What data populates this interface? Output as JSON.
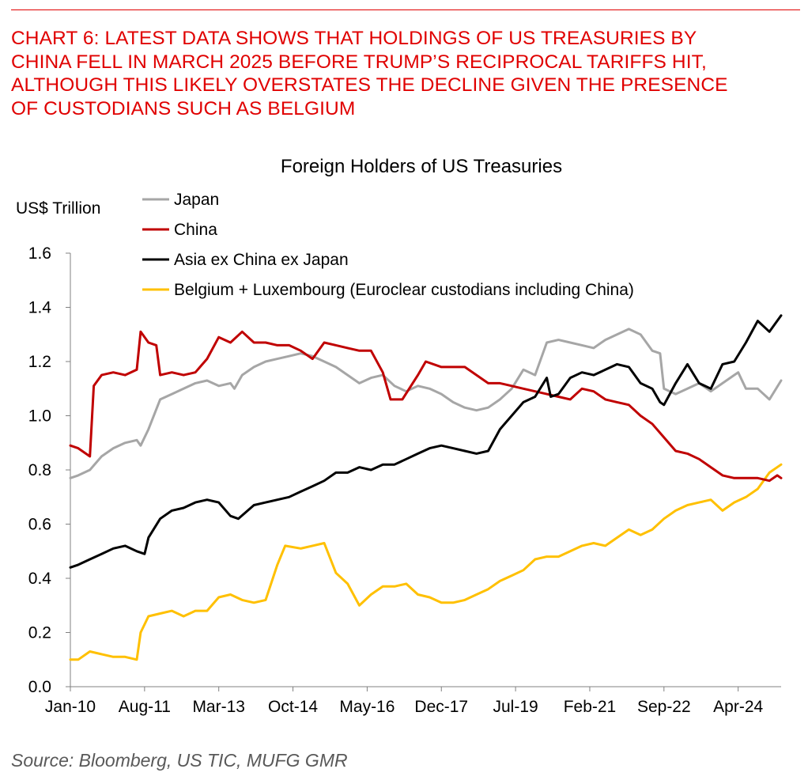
{
  "header": {
    "headline_lines": [
      "CHART 6: LATEST DATA SHOWS THAT HOLDINGS OF US TREASURIES BY",
      "CHINA FELL IN MARCH 2025 BEFORE TRUMP’S RECIPROCAL TARIFFS HIT,",
      "ALTHOUGH THIS LIKELY OVERSTATES THE DECLINE GIVEN THE PRESENCE",
      "OF CUSTODIANS SUCH AS BELGIUM"
    ],
    "accent_color": "#e00000"
  },
  "footer": {
    "source": "Source: Bloomberg, US TIC, MUFG GMR"
  },
  "chart_data": {
    "type": "line",
    "title": "Foreign Holders of US Treasuries",
    "ylabel": "US$ Trillion",
    "xlabel": "",
    "ylim": [
      0,
      1.6
    ],
    "yticks": [
      0.0,
      0.2,
      0.4,
      0.6,
      0.8,
      1.0,
      1.2,
      1.4,
      1.6
    ],
    "ytick_labels": [
      "0.0",
      "0.2",
      "0.4",
      "0.6",
      "0.8",
      "1.0",
      "1.2",
      "1.4",
      "1.6"
    ],
    "xlim": [
      "2010-01",
      "2025-03"
    ],
    "xticks": [
      "2010-01",
      "2011-08",
      "2013-03",
      "2014-10",
      "2016-05",
      "2017-12",
      "2019-07",
      "2021-02",
      "2022-09",
      "2024-04"
    ],
    "xtick_labels": [
      "Jan-10",
      "Aug-11",
      "Mar-13",
      "Oct-14",
      "May-16",
      "Dec-17",
      "Jul-19",
      "Feb-21",
      "Sep-22",
      "Apr-24"
    ],
    "grid": false,
    "legend_position": "top-left",
    "series": [
      {
        "name": "Japan",
        "color": "#a6a6a6",
        "points": [
          [
            "2010-01",
            0.77
          ],
          [
            "2010-03",
            0.78
          ],
          [
            "2010-06",
            0.8
          ],
          [
            "2010-09",
            0.85
          ],
          [
            "2010-12",
            0.88
          ],
          [
            "2011-03",
            0.9
          ],
          [
            "2011-06",
            0.91
          ],
          [
            "2011-07",
            0.89
          ],
          [
            "2011-09",
            0.95
          ],
          [
            "2011-12",
            1.06
          ],
          [
            "2012-03",
            1.08
          ],
          [
            "2012-06",
            1.1
          ],
          [
            "2012-09",
            1.12
          ],
          [
            "2012-12",
            1.13
          ],
          [
            "2013-03",
            1.11
          ],
          [
            "2013-06",
            1.12
          ],
          [
            "2013-07",
            1.1
          ],
          [
            "2013-09",
            1.15
          ],
          [
            "2013-12",
            1.18
          ],
          [
            "2014-03",
            1.2
          ],
          [
            "2014-06",
            1.21
          ],
          [
            "2014-09",
            1.22
          ],
          [
            "2014-12",
            1.23
          ],
          [
            "2015-03",
            1.22
          ],
          [
            "2015-06",
            1.2
          ],
          [
            "2015-09",
            1.18
          ],
          [
            "2015-12",
            1.15
          ],
          [
            "2016-03",
            1.12
          ],
          [
            "2016-06",
            1.14
          ],
          [
            "2016-09",
            1.15
          ],
          [
            "2016-12",
            1.11
          ],
          [
            "2017-03",
            1.09
          ],
          [
            "2017-06",
            1.11
          ],
          [
            "2017-09",
            1.1
          ],
          [
            "2017-12",
            1.08
          ],
          [
            "2018-03",
            1.05
          ],
          [
            "2018-06",
            1.03
          ],
          [
            "2018-09",
            1.02
          ],
          [
            "2018-12",
            1.03
          ],
          [
            "2019-03",
            1.06
          ],
          [
            "2019-06",
            1.1
          ],
          [
            "2019-09",
            1.17
          ],
          [
            "2019-12",
            1.15
          ],
          [
            "2020-03",
            1.27
          ],
          [
            "2020-06",
            1.28
          ],
          [
            "2020-09",
            1.27
          ],
          [
            "2020-12",
            1.26
          ],
          [
            "2021-03",
            1.25
          ],
          [
            "2021-06",
            1.28
          ],
          [
            "2021-09",
            1.3
          ],
          [
            "2021-12",
            1.32
          ],
          [
            "2022-03",
            1.3
          ],
          [
            "2022-06",
            1.24
          ],
          [
            "2022-08",
            1.23
          ],
          [
            "2022-09",
            1.1
          ],
          [
            "2022-12",
            1.08
          ],
          [
            "2023-03",
            1.1
          ],
          [
            "2023-06",
            1.12
          ],
          [
            "2023-09",
            1.09
          ],
          [
            "2023-12",
            1.12
          ],
          [
            "2024-03",
            1.15
          ],
          [
            "2024-04",
            1.16
          ],
          [
            "2024-06",
            1.1
          ],
          [
            "2024-09",
            1.1
          ],
          [
            "2024-12",
            1.06
          ],
          [
            "2025-03",
            1.13
          ]
        ]
      },
      {
        "name": "China",
        "color": "#c00000",
        "points": [
          [
            "2010-01",
            0.89
          ],
          [
            "2010-03",
            0.88
          ],
          [
            "2010-06",
            0.85
          ],
          [
            "2010-07",
            1.11
          ],
          [
            "2010-09",
            1.15
          ],
          [
            "2010-12",
            1.16
          ],
          [
            "2011-03",
            1.15
          ],
          [
            "2011-06",
            1.17
          ],
          [
            "2011-07",
            1.31
          ],
          [
            "2011-09",
            1.27
          ],
          [
            "2011-11",
            1.26
          ],
          [
            "2011-12",
            1.15
          ],
          [
            "2012-03",
            1.16
          ],
          [
            "2012-06",
            1.15
          ],
          [
            "2012-09",
            1.16
          ],
          [
            "2012-12",
            1.21
          ],
          [
            "2013-03",
            1.29
          ],
          [
            "2013-06",
            1.27
          ],
          [
            "2013-09",
            1.31
          ],
          [
            "2013-12",
            1.27
          ],
          [
            "2014-03",
            1.27
          ],
          [
            "2014-06",
            1.26
          ],
          [
            "2014-09",
            1.26
          ],
          [
            "2014-12",
            1.24
          ],
          [
            "2015-03",
            1.21
          ],
          [
            "2015-06",
            1.27
          ],
          [
            "2015-09",
            1.26
          ],
          [
            "2015-12",
            1.25
          ],
          [
            "2016-03",
            1.24
          ],
          [
            "2016-06",
            1.24
          ],
          [
            "2016-09",
            1.16
          ],
          [
            "2016-11",
            1.06
          ],
          [
            "2017-02",
            1.06
          ],
          [
            "2017-06",
            1.15
          ],
          [
            "2017-08",
            1.2
          ],
          [
            "2017-12",
            1.18
          ],
          [
            "2018-03",
            1.18
          ],
          [
            "2018-06",
            1.18
          ],
          [
            "2018-09",
            1.15
          ],
          [
            "2018-12",
            1.12
          ],
          [
            "2019-03",
            1.12
          ],
          [
            "2019-06",
            1.11
          ],
          [
            "2019-09",
            1.1
          ],
          [
            "2019-12",
            1.09
          ],
          [
            "2020-03",
            1.08
          ],
          [
            "2020-06",
            1.07
          ],
          [
            "2020-09",
            1.06
          ],
          [
            "2020-12",
            1.1
          ],
          [
            "2021-03",
            1.09
          ],
          [
            "2021-06",
            1.06
          ],
          [
            "2021-09",
            1.05
          ],
          [
            "2021-12",
            1.04
          ],
          [
            "2022-03",
            1.0
          ],
          [
            "2022-06",
            0.97
          ],
          [
            "2022-09",
            0.92
          ],
          [
            "2022-12",
            0.87
          ],
          [
            "2023-03",
            0.86
          ],
          [
            "2023-06",
            0.84
          ],
          [
            "2023-09",
            0.81
          ],
          [
            "2023-12",
            0.78
          ],
          [
            "2024-03",
            0.77
          ],
          [
            "2024-06",
            0.77
          ],
          [
            "2024-09",
            0.77
          ],
          [
            "2024-12",
            0.76
          ],
          [
            "2025-02",
            0.78
          ],
          [
            "2025-03",
            0.77
          ]
        ]
      },
      {
        "name": "Asia ex China ex Japan",
        "color": "#000000",
        "points": [
          [
            "2010-01",
            0.44
          ],
          [
            "2010-03",
            0.45
          ],
          [
            "2010-06",
            0.47
          ],
          [
            "2010-09",
            0.49
          ],
          [
            "2010-12",
            0.51
          ],
          [
            "2011-03",
            0.52
          ],
          [
            "2011-06",
            0.5
          ],
          [
            "2011-08",
            0.49
          ],
          [
            "2011-09",
            0.55
          ],
          [
            "2011-12",
            0.62
          ],
          [
            "2012-03",
            0.65
          ],
          [
            "2012-06",
            0.66
          ],
          [
            "2012-09",
            0.68
          ],
          [
            "2012-12",
            0.69
          ],
          [
            "2013-03",
            0.68
          ],
          [
            "2013-06",
            0.63
          ],
          [
            "2013-08",
            0.62
          ],
          [
            "2013-12",
            0.67
          ],
          [
            "2014-03",
            0.68
          ],
          [
            "2014-06",
            0.69
          ],
          [
            "2014-09",
            0.7
          ],
          [
            "2014-12",
            0.72
          ],
          [
            "2015-03",
            0.74
          ],
          [
            "2015-06",
            0.76
          ],
          [
            "2015-09",
            0.79
          ],
          [
            "2015-12",
            0.79
          ],
          [
            "2016-03",
            0.81
          ],
          [
            "2016-06",
            0.8
          ],
          [
            "2016-09",
            0.82
          ],
          [
            "2016-12",
            0.82
          ],
          [
            "2017-03",
            0.84
          ],
          [
            "2017-06",
            0.86
          ],
          [
            "2017-09",
            0.88
          ],
          [
            "2017-12",
            0.89
          ],
          [
            "2018-03",
            0.88
          ],
          [
            "2018-06",
            0.87
          ],
          [
            "2018-09",
            0.86
          ],
          [
            "2018-12",
            0.87
          ],
          [
            "2019-03",
            0.95
          ],
          [
            "2019-06",
            1.0
          ],
          [
            "2019-09",
            1.05
          ],
          [
            "2019-12",
            1.07
          ],
          [
            "2020-03",
            1.14
          ],
          [
            "2020-04",
            1.07
          ],
          [
            "2020-06",
            1.08
          ],
          [
            "2020-09",
            1.14
          ],
          [
            "2020-12",
            1.16
          ],
          [
            "2021-03",
            1.15
          ],
          [
            "2021-06",
            1.17
          ],
          [
            "2021-09",
            1.19
          ],
          [
            "2021-12",
            1.18
          ],
          [
            "2022-03",
            1.12
          ],
          [
            "2022-06",
            1.1
          ],
          [
            "2022-08",
            1.05
          ],
          [
            "2022-09",
            1.04
          ],
          [
            "2022-12",
            1.12
          ],
          [
            "2023-03",
            1.19
          ],
          [
            "2023-06",
            1.12
          ],
          [
            "2023-09",
            1.1
          ],
          [
            "2023-12",
            1.19
          ],
          [
            "2024-03",
            1.2
          ],
          [
            "2024-06",
            1.27
          ],
          [
            "2024-09",
            1.35
          ],
          [
            "2024-12",
            1.31
          ],
          [
            "2025-03",
            1.37
          ]
        ]
      },
      {
        "name": "Belgium + Luxembourg (Euroclear custodians including China)",
        "color": "#ffc000",
        "points": [
          [
            "2010-01",
            0.1
          ],
          [
            "2010-03",
            0.1
          ],
          [
            "2010-06",
            0.13
          ],
          [
            "2010-09",
            0.12
          ],
          [
            "2010-12",
            0.11
          ],
          [
            "2011-03",
            0.11
          ],
          [
            "2011-06",
            0.1
          ],
          [
            "2011-07",
            0.2
          ],
          [
            "2011-09",
            0.26
          ],
          [
            "2011-12",
            0.27
          ],
          [
            "2012-03",
            0.28
          ],
          [
            "2012-06",
            0.26
          ],
          [
            "2012-09",
            0.28
          ],
          [
            "2012-12",
            0.28
          ],
          [
            "2013-03",
            0.33
          ],
          [
            "2013-06",
            0.34
          ],
          [
            "2013-09",
            0.32
          ],
          [
            "2013-12",
            0.31
          ],
          [
            "2014-03",
            0.32
          ],
          [
            "2014-06",
            0.45
          ],
          [
            "2014-08",
            0.52
          ],
          [
            "2014-12",
            0.51
          ],
          [
            "2015-03",
            0.52
          ],
          [
            "2015-06",
            0.53
          ],
          [
            "2015-09",
            0.42
          ],
          [
            "2015-12",
            0.38
          ],
          [
            "2016-03",
            0.3
          ],
          [
            "2016-06",
            0.34
          ],
          [
            "2016-09",
            0.37
          ],
          [
            "2016-12",
            0.37
          ],
          [
            "2017-03",
            0.38
          ],
          [
            "2017-06",
            0.34
          ],
          [
            "2017-09",
            0.33
          ],
          [
            "2017-12",
            0.31
          ],
          [
            "2018-03",
            0.31
          ],
          [
            "2018-06",
            0.32
          ],
          [
            "2018-09",
            0.34
          ],
          [
            "2018-12",
            0.36
          ],
          [
            "2019-03",
            0.39
          ],
          [
            "2019-06",
            0.41
          ],
          [
            "2019-09",
            0.43
          ],
          [
            "2019-12",
            0.47
          ],
          [
            "2020-03",
            0.48
          ],
          [
            "2020-06",
            0.48
          ],
          [
            "2020-09",
            0.5
          ],
          [
            "2020-12",
            0.52
          ],
          [
            "2021-03",
            0.53
          ],
          [
            "2021-06",
            0.52
          ],
          [
            "2021-09",
            0.55
          ],
          [
            "2021-12",
            0.58
          ],
          [
            "2022-03",
            0.56
          ],
          [
            "2022-06",
            0.58
          ],
          [
            "2022-09",
            0.62
          ],
          [
            "2022-12",
            0.65
          ],
          [
            "2023-03",
            0.67
          ],
          [
            "2023-06",
            0.68
          ],
          [
            "2023-09",
            0.69
          ],
          [
            "2023-12",
            0.65
          ],
          [
            "2024-03",
            0.68
          ],
          [
            "2024-06",
            0.7
          ],
          [
            "2024-09",
            0.73
          ],
          [
            "2024-12",
            0.79
          ],
          [
            "2025-03",
            0.82
          ]
        ]
      }
    ]
  }
}
